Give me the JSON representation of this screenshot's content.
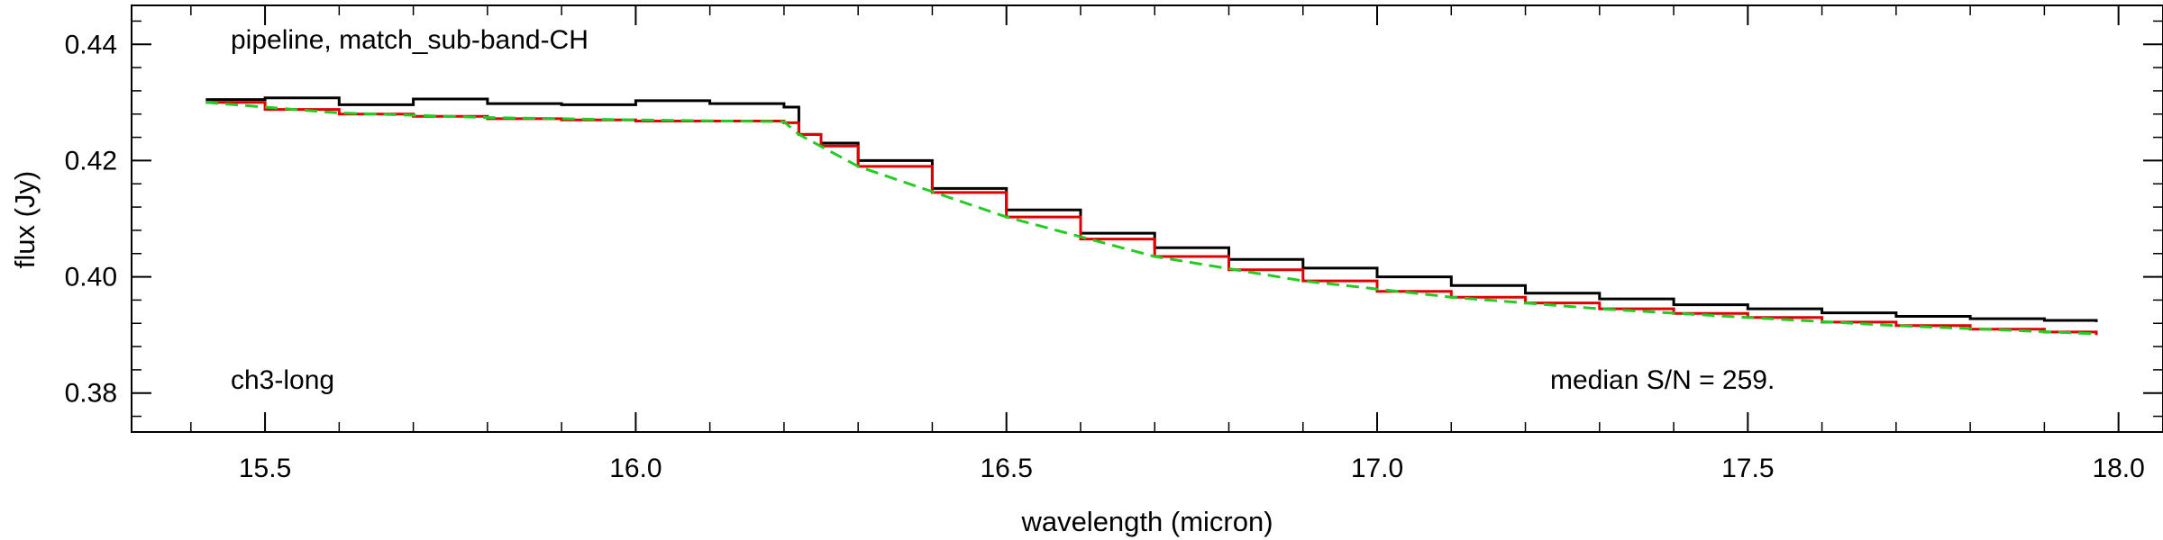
{
  "chart_data": {
    "type": "line",
    "xlabel": "wavelength (micron)",
    "ylabel": "flux (Jy)",
    "xlim": [
      15.32,
      18.06
    ],
    "ylim": [
      0.3733,
      0.4467
    ],
    "x_ticks": [
      15.5,
      16.0,
      16.5,
      17.0,
      17.5,
      18.0
    ],
    "x_tick_labels": [
      "15.5",
      "16.0",
      "16.5",
      "17.0",
      "17.5",
      "18.0"
    ],
    "y_ticks": [
      0.38,
      0.4,
      0.42,
      0.44
    ],
    "y_tick_labels": [
      "0.38",
      "0.40",
      "0.42",
      "0.44"
    ],
    "annotations": {
      "top_left": "pipeline, match_sub-band-CH",
      "bottom_left": "ch3-long",
      "bottom_right": "median S/N = 259."
    },
    "grid": false,
    "series": [
      {
        "color": "#000000",
        "style": "steps",
        "x": [
          15.42,
          15.5,
          15.6,
          15.7,
          15.8,
          15.9,
          16.0,
          16.1,
          16.2,
          16.22,
          16.25,
          16.3,
          16.4,
          16.5,
          16.6,
          16.7,
          16.8,
          16.9,
          17.0,
          17.1,
          17.2,
          17.3,
          17.4,
          17.5,
          17.6,
          17.7,
          17.8,
          17.9,
          17.97
        ],
        "y": [
          0.4305,
          0.4308,
          0.4296,
          0.4306,
          0.4298,
          0.4296,
          0.4303,
          0.4298,
          0.4292,
          0.4245,
          0.423,
          0.42,
          0.4152,
          0.4115,
          0.4075,
          0.405,
          0.403,
          0.4015,
          0.4,
          0.3985,
          0.3972,
          0.3962,
          0.3952,
          0.3945,
          0.3938,
          0.3932,
          0.3928,
          0.3925,
          0.3922
        ]
      },
      {
        "color": "#e00000",
        "style": "steps",
        "x": [
          15.42,
          15.5,
          15.6,
          15.7,
          15.8,
          15.9,
          16.0,
          16.1,
          16.2,
          16.22,
          16.25,
          16.3,
          16.4,
          16.5,
          16.6,
          16.7,
          16.8,
          16.9,
          17.0,
          17.1,
          17.2,
          17.3,
          17.4,
          17.5,
          17.6,
          17.7,
          17.8,
          17.9,
          17.97
        ],
        "y": [
          0.43,
          0.4288,
          0.428,
          0.4276,
          0.4272,
          0.427,
          0.4268,
          0.4268,
          0.4265,
          0.4245,
          0.4225,
          0.419,
          0.4145,
          0.4103,
          0.4065,
          0.4035,
          0.4012,
          0.3993,
          0.3975,
          0.3965,
          0.3955,
          0.3945,
          0.3937,
          0.393,
          0.3922,
          0.3916,
          0.391,
          0.3905,
          0.39
        ]
      },
      {
        "color": "#22cc22",
        "style": "dashed",
        "x": [
          15.42,
          15.6,
          15.8,
          16.0,
          16.2,
          16.22,
          16.3,
          16.5,
          16.7,
          16.9,
          17.1,
          17.3,
          17.5,
          17.7,
          17.97
        ],
        "y": [
          0.43,
          0.4282,
          0.4274,
          0.427,
          0.4267,
          0.4245,
          0.419,
          0.4103,
          0.4035,
          0.3993,
          0.3965,
          0.3945,
          0.393,
          0.3916,
          0.3902
        ]
      }
    ]
  }
}
